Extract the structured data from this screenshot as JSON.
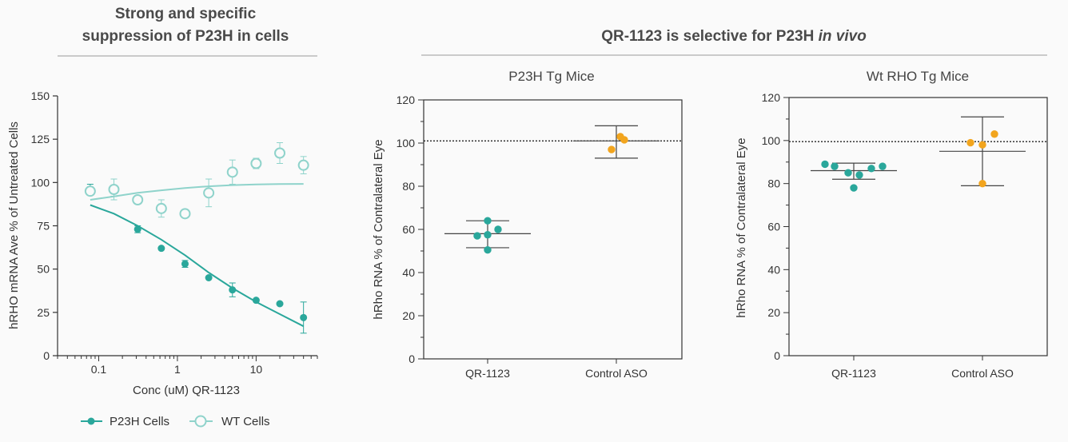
{
  "panel_left": {
    "title_lines": [
      "Strong and specific",
      "suppression of P23H in cells"
    ]
  },
  "panel_right": {
    "title_main": "QR-1123 is selective for P23H ",
    "title_italic": "in vivo"
  },
  "colors": {
    "p23h": "#2aa79b",
    "wt": "#8fd3cb",
    "control": "#f2a51e",
    "axis": "#333333",
    "rule": "#999999"
  },
  "chart_data": [
    {
      "type": "scatter",
      "id": "dose_response",
      "title": "",
      "xlabel": "Conc (uM) QR-1123",
      "ylabel": "hRHO mRNA Ave % of Untreated Cells",
      "xscale": "log",
      "xlim": [
        0.03,
        60
      ],
      "ylim": [
        0,
        150
      ],
      "yticks": [
        0,
        25,
        50,
        75,
        100,
        125,
        150
      ],
      "xticks": [
        0.1,
        1,
        10
      ],
      "xtick_labels": [
        "0.1",
        "1",
        "10"
      ],
      "legend": [
        "P23H Cells",
        "WT Cells"
      ],
      "legend_position": "bottom-left",
      "series": [
        {
          "name": "P23H Cells",
          "marker": "filled-circle",
          "x": [
            0.078,
            0.156,
            0.3125,
            0.625,
            1.25,
            2.5,
            5,
            10,
            20,
            40
          ],
          "y": [
            96,
            95,
            73,
            62,
            53,
            45,
            38,
            32,
            30,
            22
          ],
          "err": [
            3,
            3,
            2,
            0,
            2,
            0,
            4,
            0,
            0,
            9
          ],
          "fit": {
            "x": [
              0.078,
              0.156,
              0.3125,
              0.625,
              1.25,
              2.5,
              5,
              10,
              20,
              40
            ],
            "y": [
              87,
              82,
              75,
              67,
              58,
              48,
              39,
              31,
              24,
              17
            ]
          }
        },
        {
          "name": "WT Cells",
          "marker": "open-circle",
          "x": [
            0.078,
            0.156,
            0.3125,
            0.625,
            1.25,
            2.5,
            5,
            10,
            20,
            40
          ],
          "y": [
            95,
            96,
            90,
            85,
            82,
            94,
            106,
            111,
            117,
            110
          ],
          "err": [
            2,
            6,
            0,
            5,
            0,
            8,
            7,
            3,
            6,
            5
          ],
          "fit": {
            "x": [
              0.078,
              0.156,
              0.3125,
              0.625,
              1.25,
              2.5,
              5,
              10,
              20,
              40
            ],
            "y": [
              90,
              92,
              94,
              95.5,
              96.8,
              97.8,
              98.5,
              98.9,
              99.1,
              99.2
            ]
          }
        }
      ]
    },
    {
      "type": "scatter",
      "id": "p23h_mice",
      "title": "P23H Tg Mice",
      "xlabel": "",
      "ylabel": "hRho RNA % of Contralateral Eye",
      "categories": [
        "QR-1123",
        "Control ASO"
      ],
      "ylim": [
        0,
        120
      ],
      "yticks": [
        0,
        20,
        40,
        60,
        80,
        100,
        120
      ],
      "reference_line": 101,
      "groups": [
        {
          "name": "QR-1123",
          "color_key": "p23h",
          "points": [
            57,
            64,
            57.5,
            60,
            50.5
          ],
          "mean": 58,
          "sd": [
            51.5,
            64
          ]
        },
        {
          "name": "Control ASO",
          "color_key": "control",
          "points": [
            97,
            103,
            101.5
          ],
          "mean": 101,
          "sd": [
            93,
            108
          ]
        }
      ]
    },
    {
      "type": "scatter",
      "id": "wt_mice",
      "title": "Wt RHO Tg Mice",
      "xlabel": "",
      "ylabel": "hRho RNA % of Contralateral Eye",
      "categories": [
        "QR-1123",
        "Control ASO"
      ],
      "ylim": [
        0,
        120
      ],
      "yticks": [
        0,
        20,
        40,
        60,
        80,
        100,
        120
      ],
      "reference_line": 99.5,
      "groups": [
        {
          "name": "QR-1123",
          "color_key": "p23h",
          "points": [
            89,
            88,
            85,
            78,
            84,
            87,
            88
          ],
          "mean": 86,
          "sd": [
            82,
            89.5
          ]
        },
        {
          "name": "Control ASO",
          "color_key": "control",
          "points": [
            99,
            98,
            80,
            103
          ],
          "mean": 95,
          "sd": [
            79,
            111
          ]
        }
      ]
    }
  ]
}
